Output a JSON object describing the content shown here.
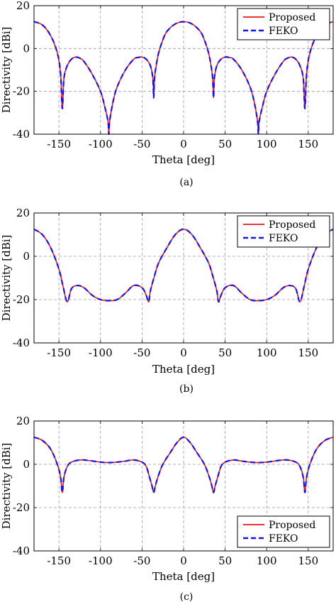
{
  "colors": {
    "proposed": "#e8141a",
    "feko": "#1414e8",
    "grid": "#9a9a9a",
    "axis": "#000000"
  },
  "chart_data": [
    {
      "type": "line",
      "caption": "(a)",
      "xlabel": "Theta [deg]",
      "ylabel": "Directivity [dBi]",
      "xlim": [
        -180,
        180
      ],
      "ylim": [
        -40,
        20
      ],
      "xticks": [
        -150,
        -100,
        -50,
        0,
        50,
        100,
        150
      ],
      "yticks": [
        -40,
        -20,
        0,
        20
      ],
      "grid": true,
      "legend_position": "top-right",
      "series": [
        {
          "name": "Proposed",
          "style": "solid",
          "color": "#e8141a"
        },
        {
          "name": "FEKO",
          "style": "dashed",
          "color": "#1414e8"
        }
      ],
      "curve": {
        "x": [
          -180,
          -170,
          -160,
          -152,
          -148,
          -146,
          -144,
          -140,
          -135,
          -130,
          -125,
          -120,
          -110,
          -100,
          -95,
          -91,
          -90,
          -89,
          -85,
          -80,
          -70,
          -60,
          -55,
          -50,
          -45,
          -40,
          -37,
          -36,
          -35,
          -33,
          -30,
          -25,
          -20,
          -10,
          0,
          10,
          20,
          25,
          30,
          33,
          35,
          36,
          37,
          40,
          45,
          50,
          55,
          60,
          70,
          80,
          85,
          89,
          90,
          91,
          95,
          100,
          110,
          120,
          125,
          130,
          135,
          140,
          144,
          146,
          148,
          152,
          160,
          170,
          180
        ],
        "y": [
          12.5,
          11,
          6,
          -2,
          -12,
          -28,
          -14,
          -8,
          -5,
          -4,
          -4.5,
          -6,
          -12,
          -20,
          -27,
          -34,
          -40,
          -34,
          -25,
          -18,
          -10,
          -5,
          -4.2,
          -4,
          -5,
          -8,
          -14,
          -23,
          -14,
          -8,
          -2,
          4,
          8,
          11.5,
          12.5,
          11.5,
          8,
          4,
          -2,
          -8,
          -14,
          -23,
          -14,
          -8,
          -5,
          -4,
          -4.2,
          -5,
          -10,
          -18,
          -25,
          -34,
          -40,
          -34,
          -27,
          -20,
          -12,
          -6,
          -4.5,
          -4,
          -5,
          -8,
          -14,
          -28,
          -12,
          -2,
          6,
          11,
          12.5
        ]
      }
    },
    {
      "type": "line",
      "caption": "(b)",
      "xlabel": "Theta [deg]",
      "ylabel": "Directivity [dBi]",
      "xlim": [
        -180,
        180
      ],
      "ylim": [
        -40,
        20
      ],
      "xticks": [
        -150,
        -100,
        -50,
        0,
        50,
        100,
        150
      ],
      "yticks": [
        -40,
        -20,
        0,
        20
      ],
      "grid": true,
      "legend_position": "top-right",
      "series": [
        {
          "name": "Proposed",
          "style": "solid",
          "color": "#e8141a"
        },
        {
          "name": "FEKO",
          "style": "dashed",
          "color": "#1414e8"
        }
      ],
      "curve": {
        "x": [
          -180,
          -170,
          -160,
          -150,
          -145,
          -140,
          -135,
          -128,
          -120,
          -110,
          -100,
          -90,
          -80,
          -70,
          -60,
          -50,
          -45,
          -42,
          -40,
          -35,
          -30,
          -20,
          -10,
          0,
          10,
          20,
          30,
          35,
          40,
          42,
          45,
          50,
          60,
          70,
          80,
          90,
          100,
          110,
          120,
          128,
          135,
          140,
          145,
          150,
          160,
          170,
          180
        ],
        "y": [
          12.5,
          10,
          4,
          -6,
          -14,
          -21,
          -15,
          -13.5,
          -14.5,
          -18,
          -20,
          -20.5,
          -20,
          -17,
          -13.5,
          -14.5,
          -18,
          -21,
          -16,
          -9,
          -3,
          4,
          10,
          12.5,
          10,
          4,
          -3,
          -9,
          -16,
          -21,
          -18,
          -14.5,
          -13.5,
          -17,
          -20,
          -20.5,
          -20,
          -18,
          -14.5,
          -13.5,
          -15,
          -21,
          -14,
          -6,
          4,
          10,
          12.5
        ]
      }
    },
    {
      "type": "line",
      "caption": "(c)",
      "xlabel": "Theta [deg]",
      "ylabel": "Directivity [dBi]",
      "xlim": [
        -180,
        180
      ],
      "ylim": [
        -40,
        20
      ],
      "xticks": [
        -150,
        -100,
        -50,
        0,
        50,
        100,
        150
      ],
      "yticks": [
        -40,
        -20,
        0,
        20
      ],
      "grid": true,
      "legend_position": "bottom-right",
      "series": [
        {
          "name": "Proposed",
          "style": "solid",
          "color": "#e8141a"
        },
        {
          "name": "FEKO",
          "style": "dashed",
          "color": "#1414e8"
        }
      ],
      "curve": {
        "x": [
          -180,
          -170,
          -160,
          -152,
          -148,
          -146,
          -144,
          -140,
          -135,
          -125,
          -115,
          -100,
          -90,
          -80,
          -70,
          -60,
          -50,
          -45,
          -41,
          -38,
          -36,
          -34,
          -31,
          -25,
          -15,
          -8,
          0,
          8,
          15,
          25,
          31,
          34,
          36,
          38,
          41,
          45,
          50,
          60,
          70,
          80,
          90,
          100,
          115,
          125,
          135,
          140,
          144,
          146,
          148,
          152,
          160,
          170,
          180
        ],
        "y": [
          12.5,
          11,
          7,
          0,
          -6,
          -13,
          -6,
          -1,
          1,
          2,
          1.8,
          1,
          0.8,
          1,
          1.5,
          2,
          1,
          -1,
          -6,
          -10,
          -13,
          -10,
          -6,
          0,
          6,
          10,
          12.5,
          10,
          6,
          0,
          -6,
          -10,
          -13,
          -10,
          -6,
          -1,
          1,
          2,
          1.5,
          1,
          0.8,
          1,
          1.8,
          2,
          1,
          -1,
          -6,
          -13,
          -6,
          0,
          7,
          11,
          12.5
        ]
      }
    }
  ]
}
